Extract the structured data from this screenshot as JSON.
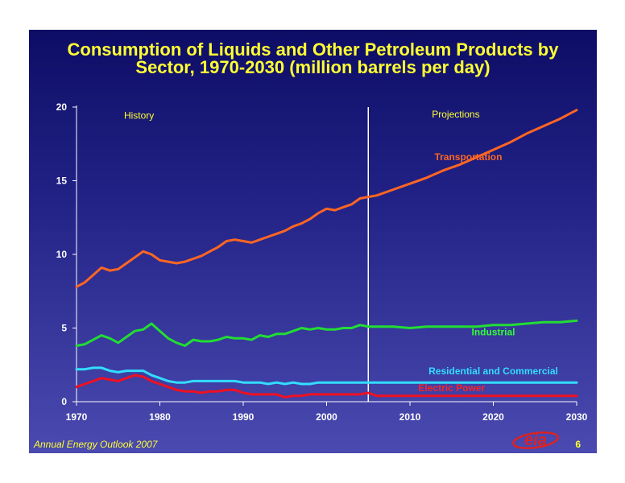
{
  "slide": {
    "title_line1": "Consumption of Liquids and Other Petroleum Products by",
    "title_line2": "Sector, 1970-2030  (million barrels per day)",
    "footer": "Annual Energy Outlook 2007",
    "page_number": "6",
    "logo_text": "eia",
    "colors": {
      "background_top": "#0d0d66",
      "background_bottom": "#4a4ab0",
      "title": "#ffff33",
      "axis": "#ffffff"
    }
  },
  "chart_data": {
    "type": "line",
    "xlim": [
      1970,
      2030
    ],
    "ylim": [
      0,
      20
    ],
    "xticks": [
      1970,
      1980,
      1990,
      2000,
      2010,
      2020,
      2030
    ],
    "yticks": [
      0,
      5,
      10,
      15,
      20
    ],
    "divider_year": 2005,
    "region_labels": [
      {
        "text": "History",
        "x": 1977.5,
        "y": 19.2
      },
      {
        "text": "Projections",
        "x": 2015.5,
        "y": 19.3
      }
    ],
    "series": [
      {
        "name": "Transportation",
        "color": "#ff6622",
        "label_color": "#ff6622",
        "label_pos": {
          "x": 2017,
          "y": 16.4
        },
        "x": [
          1970,
          1971,
          1972,
          1973,
          1974,
          1975,
          1976,
          1977,
          1978,
          1979,
          1980,
          1981,
          1982,
          1983,
          1984,
          1985,
          1986,
          1987,
          1988,
          1989,
          1990,
          1991,
          1992,
          1993,
          1994,
          1995,
          1996,
          1997,
          1998,
          1999,
          2000,
          2001,
          2002,
          2003,
          2004,
          2005,
          2006,
          2008,
          2010,
          2012,
          2014,
          2016,
          2018,
          2020,
          2022,
          2024,
          2026,
          2028,
          2030
        ],
        "values": [
          7.8,
          8.1,
          8.6,
          9.1,
          8.9,
          9.0,
          9.4,
          9.8,
          10.2,
          10.0,
          9.6,
          9.5,
          9.4,
          9.5,
          9.7,
          9.9,
          10.2,
          10.5,
          10.9,
          11.0,
          10.9,
          10.8,
          11.0,
          11.2,
          11.4,
          11.6,
          11.9,
          12.1,
          12.4,
          12.8,
          13.1,
          13.0,
          13.2,
          13.4,
          13.8,
          13.9,
          14.0,
          14.4,
          14.8,
          15.2,
          15.7,
          16.1,
          16.6,
          17.1,
          17.6,
          18.2,
          18.7,
          19.2,
          19.8
        ]
      },
      {
        "name": "Industrial",
        "color": "#22dd33",
        "label_color": "#33ff33",
        "label_pos": {
          "x": 2020,
          "y": 4.5
        },
        "x": [
          1970,
          1971,
          1972,
          1973,
          1974,
          1975,
          1976,
          1977,
          1978,
          1979,
          1980,
          1981,
          1982,
          1983,
          1984,
          1985,
          1986,
          1987,
          1988,
          1989,
          1990,
          1991,
          1992,
          1993,
          1994,
          1995,
          1996,
          1997,
          1998,
          1999,
          2000,
          2001,
          2002,
          2003,
          2004,
          2005,
          2006,
          2008,
          2010,
          2012,
          2014,
          2016,
          2018,
          2020,
          2022,
          2024,
          2026,
          2028,
          2030
        ],
        "values": [
          3.8,
          3.9,
          4.2,
          4.5,
          4.3,
          4.0,
          4.4,
          4.8,
          4.9,
          5.3,
          4.8,
          4.3,
          4.0,
          3.8,
          4.2,
          4.1,
          4.1,
          4.2,
          4.4,
          4.3,
          4.3,
          4.2,
          4.5,
          4.4,
          4.6,
          4.6,
          4.8,
          5.0,
          4.9,
          5.0,
          4.9,
          4.9,
          5.0,
          5.0,
          5.2,
          5.1,
          5.1,
          5.1,
          5.0,
          5.1,
          5.1,
          5.1,
          5.1,
          5.2,
          5.2,
          5.3,
          5.4,
          5.4,
          5.5
        ]
      },
      {
        "name": "Residential and Commercial",
        "color": "#33ddff",
        "label_color": "#33ddff",
        "label_pos": {
          "x": 2020,
          "y": 1.85
        },
        "x": [
          1970,
          1971,
          1972,
          1973,
          1974,
          1975,
          1976,
          1977,
          1978,
          1979,
          1980,
          1981,
          1982,
          1983,
          1984,
          1985,
          1986,
          1987,
          1988,
          1989,
          1990,
          1991,
          1992,
          1993,
          1994,
          1995,
          1996,
          1997,
          1998,
          1999,
          2000,
          2001,
          2002,
          2003,
          2004,
          2005,
          2006,
          2008,
          2010,
          2012,
          2014,
          2016,
          2018,
          2020,
          2022,
          2024,
          2026,
          2028,
          2030
        ],
        "values": [
          2.2,
          2.2,
          2.3,
          2.3,
          2.1,
          2.0,
          2.1,
          2.1,
          2.1,
          1.8,
          1.6,
          1.4,
          1.3,
          1.3,
          1.4,
          1.4,
          1.4,
          1.4,
          1.4,
          1.4,
          1.3,
          1.3,
          1.3,
          1.2,
          1.3,
          1.2,
          1.3,
          1.2,
          1.2,
          1.3,
          1.3,
          1.3,
          1.3,
          1.3,
          1.3,
          1.3,
          1.3,
          1.3,
          1.3,
          1.3,
          1.3,
          1.3,
          1.3,
          1.3,
          1.3,
          1.3,
          1.3,
          1.3,
          1.3
        ]
      },
      {
        "name": "Electric Power",
        "color": "#ee1122",
        "label_color": "#ff2222",
        "label_pos": {
          "x": 2015,
          "y": 0.7
        },
        "x": [
          1970,
          1971,
          1972,
          1973,
          1974,
          1975,
          1976,
          1977,
          1978,
          1979,
          1980,
          1981,
          1982,
          1983,
          1984,
          1985,
          1986,
          1987,
          1988,
          1989,
          1990,
          1991,
          1992,
          1993,
          1994,
          1995,
          1996,
          1997,
          1998,
          1999,
          2000,
          2001,
          2002,
          2003,
          2004,
          2005,
          2006,
          2008,
          2010,
          2012,
          2014,
          2016,
          2018,
          2020,
          2022,
          2024,
          2026,
          2028,
          2030
        ],
        "values": [
          1.0,
          1.2,
          1.4,
          1.6,
          1.5,
          1.4,
          1.6,
          1.8,
          1.7,
          1.4,
          1.2,
          1.0,
          0.8,
          0.7,
          0.7,
          0.6,
          0.7,
          0.7,
          0.8,
          0.8,
          0.6,
          0.5,
          0.5,
          0.5,
          0.5,
          0.3,
          0.4,
          0.4,
          0.5,
          0.5,
          0.5,
          0.5,
          0.5,
          0.5,
          0.5,
          0.6,
          0.4,
          0.4,
          0.4,
          0.4,
          0.4,
          0.4,
          0.4,
          0.4,
          0.4,
          0.4,
          0.4,
          0.4,
          0.4
        ]
      }
    ]
  }
}
